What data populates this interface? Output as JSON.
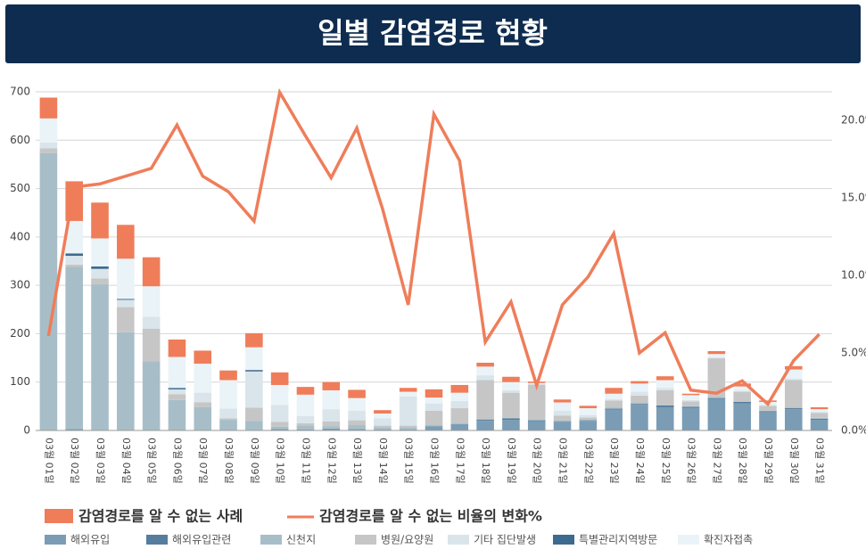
{
  "chart_data": {
    "type": "bar",
    "title": "일별 감염경로 현황",
    "categories": [
      "03월 01일",
      "03월 02일",
      "03월 03일",
      "03월 04일",
      "03월 05일",
      "03월 06일",
      "03월 07일",
      "03월 08일",
      "03월 09일",
      "03월 10일",
      "03월 11일",
      "03월 12일",
      "03월 13일",
      "03월 14일",
      "03월 15일",
      "03월 16일",
      "03월 17일",
      "03월 18일",
      "03월 19일",
      "03월 20일",
      "03월 21일",
      "03월 22일",
      "03월 23일",
      "03월 24일",
      "03월 25일",
      "03월 26일",
      "03월 27일",
      "03월 28일",
      "03월 29일",
      "03월 30일",
      "03월 31일"
    ],
    "series": [
      {
        "name": "해외유입",
        "color": "#7a9db5",
        "values": [
          0,
          3,
          0,
          0,
          0,
          0,
          0,
          0,
          0,
          3,
          2,
          4,
          3,
          2,
          2,
          9,
          13,
          20,
          22,
          19,
          18,
          20,
          43,
          53,
          48,
          47,
          65,
          56,
          38,
          44,
          22
        ]
      },
      {
        "name": "해외유입관련",
        "color": "#557d9e",
        "values": [
          0,
          0,
          0,
          0,
          0,
          0,
          0,
          0,
          0,
          0,
          0,
          0,
          0,
          0,
          0,
          0,
          0,
          2,
          3,
          2,
          1,
          1,
          2,
          2,
          4,
          2,
          2,
          3,
          2,
          2,
          2
        ]
      },
      {
        "name": "신천지",
        "color": "#a7bec8",
        "values": [
          573,
          335,
          302,
          203,
          143,
          63,
          48,
          22,
          20,
          5,
          8,
          5,
          8,
          5,
          5,
          2,
          3,
          2,
          1,
          1,
          2,
          1,
          2,
          2,
          1,
          1,
          2,
          1,
          1,
          1,
          2
        ]
      },
      {
        "name": "병원/요양원",
        "color": "#c6c6c6",
        "values": [
          10,
          5,
          12,
          52,
          67,
          12,
          10,
          3,
          27,
          10,
          5,
          10,
          10,
          3,
          3,
          30,
          30,
          80,
          52,
          73,
          10,
          5,
          15,
          15,
          30,
          10,
          80,
          20,
          10,
          57,
          10
        ]
      },
      {
        "name": "기타 집단발생",
        "color": "#d9e5eb",
        "values": [
          12,
          18,
          20,
          15,
          25,
          10,
          20,
          20,
          75,
          35,
          15,
          25,
          20,
          15,
          60,
          15,
          15,
          10,
          5,
          0,
          10,
          5,
          3,
          8,
          5,
          3,
          2,
          2,
          2,
          3,
          3
        ]
      },
      {
        "name": "특별관리지역방문",
        "color": "#3d6a8f",
        "values": [
          0,
          5,
          5,
          2,
          0,
          3,
          0,
          0,
          3,
          0,
          0,
          0,
          0,
          0,
          0,
          0,
          0,
          0,
          0,
          0,
          0,
          0,
          0,
          0,
          0,
          0,
          0,
          0,
          0,
          0,
          0
        ]
      },
      {
        "name": "확진자접촉",
        "color": "#eaf3f7",
        "values": [
          50,
          67,
          58,
          83,
          63,
          64,
          60,
          59,
          47,
          41,
          44,
          39,
          26,
          10,
          10,
          12,
          17,
          18,
          17,
          3,
          17,
          14,
          11,
          17,
          16,
          10,
          7,
          9,
          6,
          19,
          5
        ]
      },
      {
        "name": "감염경로를 알 수 없는 사례",
        "color": "#ef7d5a",
        "values": [
          43,
          82,
          74,
          70,
          60,
          36,
          27,
          20,
          29,
          26,
          16,
          17,
          17,
          7,
          8,
          17,
          16,
          8,
          11,
          3,
          6,
          5,
          12,
          5,
          8,
          3,
          6,
          6,
          3,
          7,
          4
        ]
      },
      {
        "name": "감염경로를 알 수 없는 비율의 변화%",
        "color": "#ef7d5a",
        "axis": "y2",
        "values": [
          6.1,
          15.7,
          15.9,
          16.4,
          16.9,
          19.7,
          16.4,
          15.4,
          13.5,
          21.8,
          19.0,
          16.3,
          19.5,
          14.3,
          8.1,
          20.4,
          17.4,
          5.7,
          8.3,
          2.9,
          8.1,
          9.9,
          12.7,
          5.0,
          6.3,
          2.6,
          2.4,
          3.2,
          1.7,
          4.5,
          6.2
        ]
      }
    ],
    "ylim": [
      0,
      700
    ],
    "yticks": [
      0,
      100,
      200,
      300,
      400,
      500,
      600,
      700
    ],
    "y2lim": [
      0,
      21.84
    ],
    "y2ticks": [
      {
        "value": 0,
        "label": "0.0%"
      },
      {
        "value": 5,
        "label": "5.0%"
      },
      {
        "value": 10,
        "label": "10.0%"
      },
      {
        "value": 15,
        "label": "15.0%"
      },
      {
        "value": 20,
        "label": "20.0%"
      }
    ],
    "grid": true
  }
}
